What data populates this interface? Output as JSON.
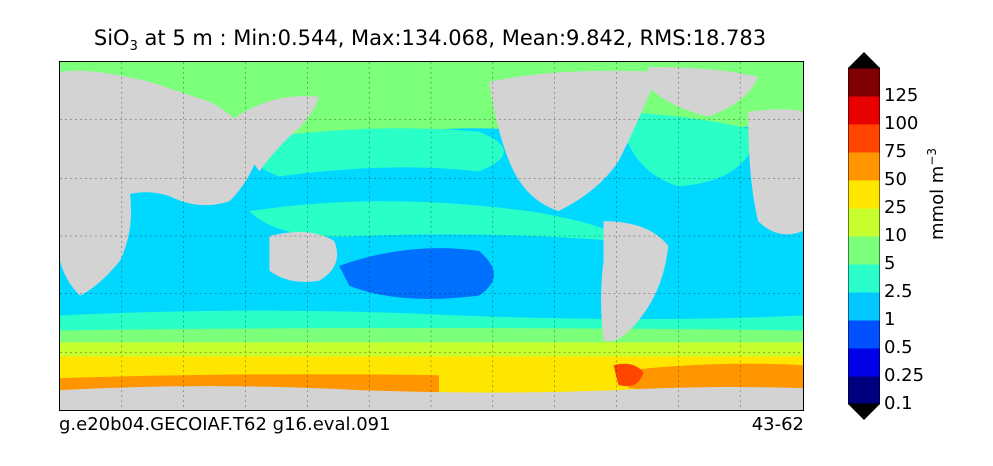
{
  "title": {
    "species": "SiO",
    "sub": "3",
    "rest": " at 5 m : Min:0.544, Max:134.068, Mean:9.842, RMS:18.783"
  },
  "footer": {
    "left": "g.e20b04.GECOIAF.T62 g16.eval.091",
    "right": "43-62"
  },
  "colorbar": {
    "unit_main": "mmol m",
    "unit_sup": "−3",
    "ticks": [
      "125",
      "100",
      "75",
      "50",
      "25",
      "10",
      "5",
      "2.5",
      "1",
      "0.5",
      "0.25",
      "0.1"
    ],
    "colors": [
      "#00007f",
      "#0000e8",
      "#0050ff",
      "#00c8ff",
      "#2affcc",
      "#7cff7a",
      "#c8ff2e",
      "#ffe600",
      "#ff9600",
      "#ff4500",
      "#e80000",
      "#7f0000"
    ],
    "over_color": "#000000",
    "under_color": "#000000"
  },
  "map_colors": {
    "land": "#d3d3d3",
    "level_1": "#00d8ff",
    "level_2_5": "#2affc8",
    "level_5": "#7cff7a",
    "level_10": "#c8ff2e",
    "level_25": "#ffe600",
    "level_50": "#ff9600",
    "level_75": "#ff4500",
    "level_05": "#0070ff"
  }
}
